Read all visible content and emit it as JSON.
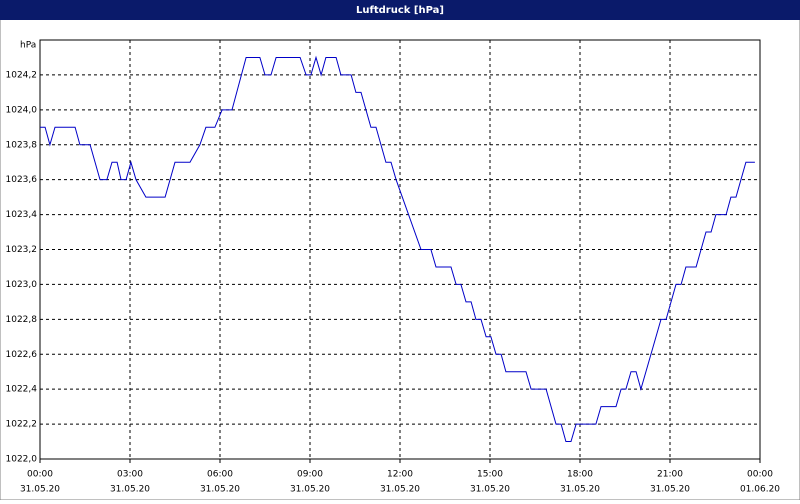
{
  "chart_data": {
    "type": "line",
    "title": "Luftdruck [hPa]",
    "y_unit": "hPa",
    "color": "#0000c8",
    "grid": true,
    "x": [
      0,
      0.17,
      0.33,
      0.5,
      1.17,
      1.33,
      1.67,
      2,
      2.23,
      2.4,
      2.57,
      2.7,
      2.87,
      3.03,
      3.2,
      3.53,
      4.17,
      4.5,
      5,
      5.33,
      5.53,
      5.83,
      6.07,
      6.4,
      6.87,
      7.33,
      7.5,
      7.7,
      7.87,
      8.67,
      8.87,
      9.03,
      9.2,
      9.37,
      9.53,
      9.87,
      10.03,
      10.37,
      10.53,
      10.7,
      11.03,
      11.2,
      11.53,
      11.7,
      11.87,
      12.7,
      13.03,
      13.2,
      13.7,
      13.87,
      14.03,
      14.2,
      14.37,
      14.53,
      14.7,
      14.87,
      15.03,
      15.2,
      15.37,
      15.53,
      16.2,
      16.37,
      16.87,
      17.2,
      17.37,
      17.53,
      17.7,
      17.87,
      18.53,
      18.7,
      19.2,
      19.37,
      19.53,
      19.7,
      19.87,
      20.03,
      20.7,
      20.87,
      21.2,
      21.37,
      21.53,
      21.87,
      22.2,
      22.37,
      22.53,
      22.87,
      23.03,
      23.2,
      23.53,
      23.83
    ],
    "values": [
      1023.9,
      1023.9,
      1023.8,
      1023.9,
      1023.9,
      1023.8,
      1023.8,
      1023.6,
      1023.6,
      1023.7,
      1023.7,
      1023.6,
      1023.6,
      1023.7,
      1023.6,
      1023.5,
      1023.5,
      1023.7,
      1023.7,
      1023.8,
      1023.9,
      1023.9,
      1024.0,
      1024.0,
      1024.3,
      1024.3,
      1024.2,
      1024.2,
      1024.3,
      1024.3,
      1024.2,
      1024.2,
      1024.3,
      1024.2,
      1024.3,
      1024.3,
      1024.2,
      1024.2,
      1024.1,
      1024.1,
      1023.9,
      1023.9,
      1023.7,
      1023.7,
      1023.6,
      1023.2,
      1023.2,
      1023.1,
      1023.1,
      1023.0,
      1023.0,
      1022.9,
      1022.9,
      1022.8,
      1022.8,
      1022.7,
      1022.7,
      1022.6,
      1022.6,
      1022.5,
      1022.5,
      1022.4,
      1022.4,
      1022.2,
      1022.2,
      1022.1,
      1022.1,
      1022.2,
      1022.2,
      1022.3,
      1022.3,
      1022.4,
      1022.4,
      1022.5,
      1022.5,
      1022.4,
      1022.8,
      1022.8,
      1023.0,
      1023.0,
      1023.1,
      1023.1,
      1023.3,
      1023.3,
      1023.4,
      1023.4,
      1023.5,
      1023.5,
      1023.7,
      1023.7
    ],
    "xlim": [
      0,
      24
    ],
    "xticks": [
      {
        "value": 0,
        "label": [
          "00:00",
          "31.05.20"
        ]
      },
      {
        "value": 3,
        "label": [
          "03:00",
          "31.05.20"
        ]
      },
      {
        "value": 6,
        "label": [
          "06:00",
          "31.05.20"
        ]
      },
      {
        "value": 9,
        "label": [
          "09:00",
          "31.05.20"
        ]
      },
      {
        "value": 12,
        "label": [
          "12:00",
          "31.05.20"
        ]
      },
      {
        "value": 15,
        "label": [
          "15:00",
          "31.05.20"
        ]
      },
      {
        "value": 18,
        "label": [
          "18:00",
          "31.05.20"
        ]
      },
      {
        "value": 21,
        "label": [
          "21:00",
          "31.05.20"
        ]
      },
      {
        "value": 24,
        "label": [
          "00:00",
          "01.06.20"
        ]
      }
    ],
    "ylim": [
      1022.0,
      1024.4
    ],
    "yticks": [
      {
        "value": 1022.0,
        "label": "1022,0"
      },
      {
        "value": 1022.2,
        "label": "1022,2"
      },
      {
        "value": 1022.4,
        "label": "1022,4"
      },
      {
        "value": 1022.6,
        "label": "1022,6"
      },
      {
        "value": 1022.8,
        "label": "1022,8"
      },
      {
        "value": 1023.0,
        "label": "1023,0"
      },
      {
        "value": 1023.2,
        "label": "1023,2"
      },
      {
        "value": 1023.4,
        "label": "1023,4"
      },
      {
        "value": 1023.6,
        "label": "1023,6"
      },
      {
        "value": 1023.8,
        "label": "1023,8"
      },
      {
        "value": 1024.0,
        "label": "1024,0"
      },
      {
        "value": 1024.2,
        "label": "1024,2"
      }
    ]
  }
}
